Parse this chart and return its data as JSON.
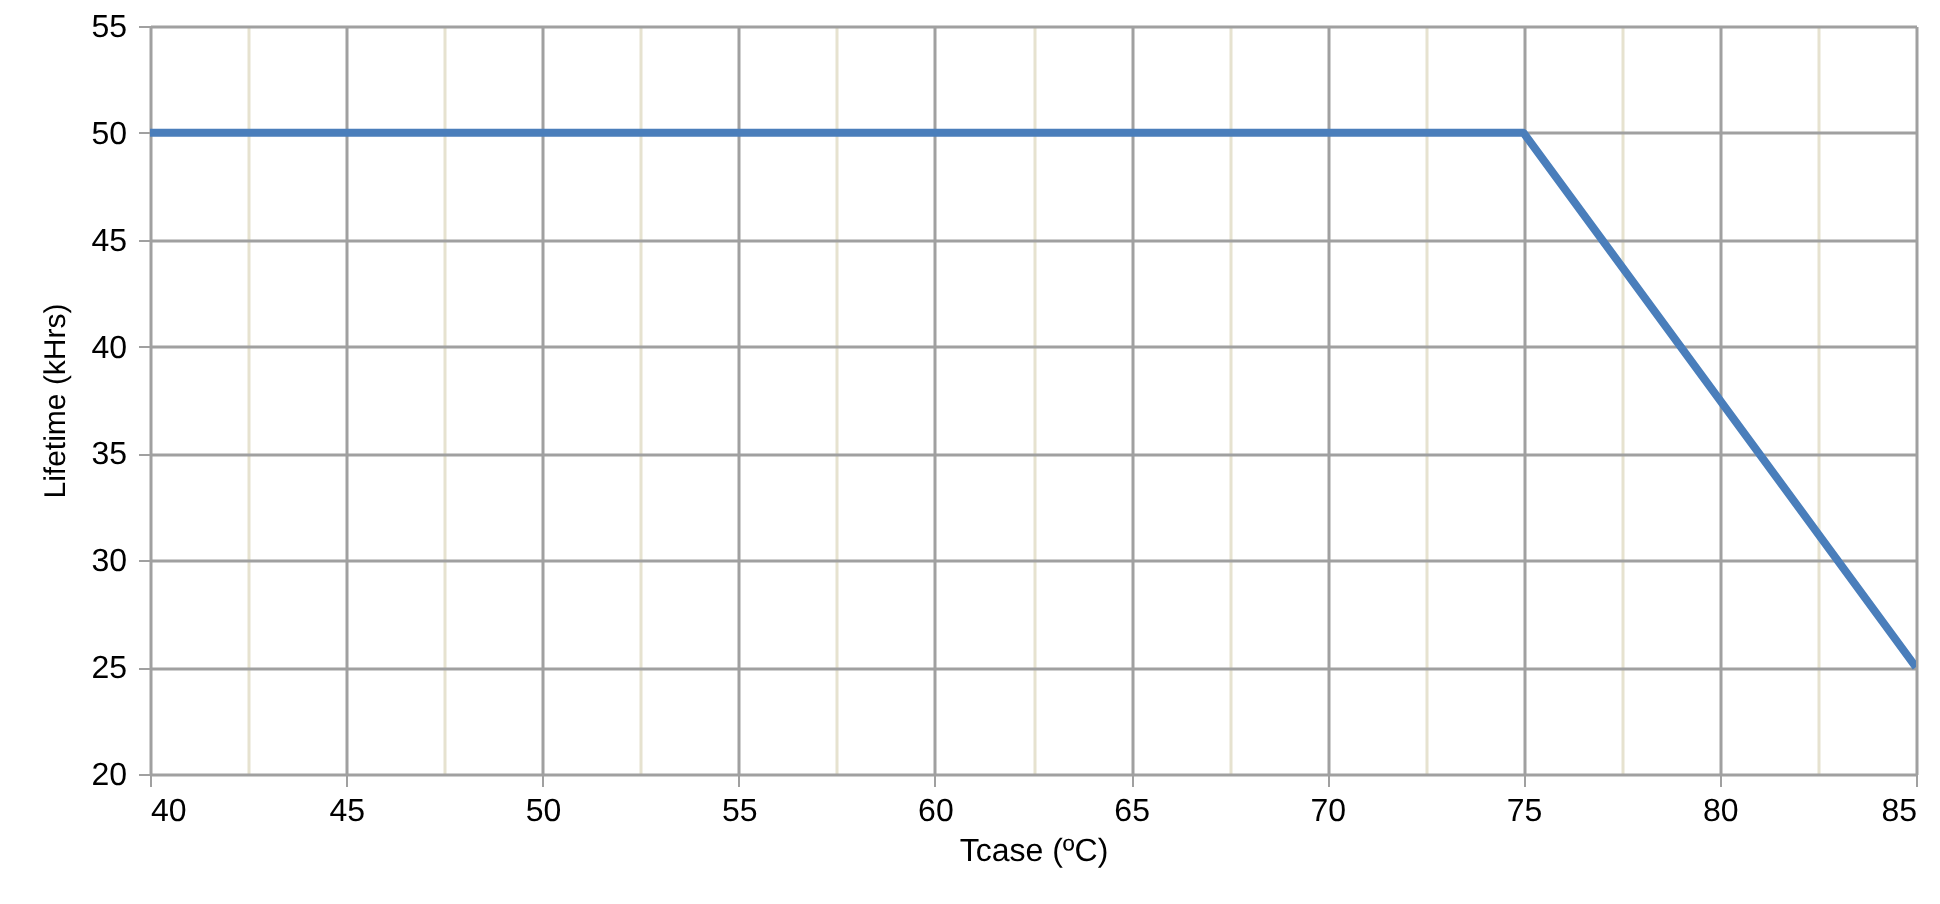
{
  "chart_data": {
    "type": "line",
    "xlabel": "Tcase (ºC)",
    "ylabel": "Lifetime (kHrs)",
    "x": [
      40,
      75,
      85
    ],
    "series": [
      {
        "color": "#4a7ebb",
        "values": [
          50,
          50,
          25
        ]
      }
    ],
    "xlim": [
      40,
      85
    ],
    "xticks": [
      40,
      {
        "value": 42.5,
        "label": null
      },
      45,
      {
        "value": 47.5,
        "label": null
      },
      50,
      {
        "value": 52.5,
        "label": null
      },
      55,
      {
        "value": 57.5,
        "label": null
      },
      60,
      {
        "value": 62.5,
        "label": null
      },
      65,
      {
        "value": 67.5,
        "label": null
      },
      70,
      {
        "value": 72.5,
        "label": null
      },
      75,
      {
        "value": 77.5,
        "label": null
      },
      80,
      {
        "value": 82.5,
        "label": null
      },
      85
    ],
    "ylim": [
      20,
      55
    ],
    "yticks": [
      20,
      25,
      30,
      35,
      40,
      45,
      50,
      55
    ],
    "grid": true,
    "marker": "none",
    "line_style": "solid"
  }
}
